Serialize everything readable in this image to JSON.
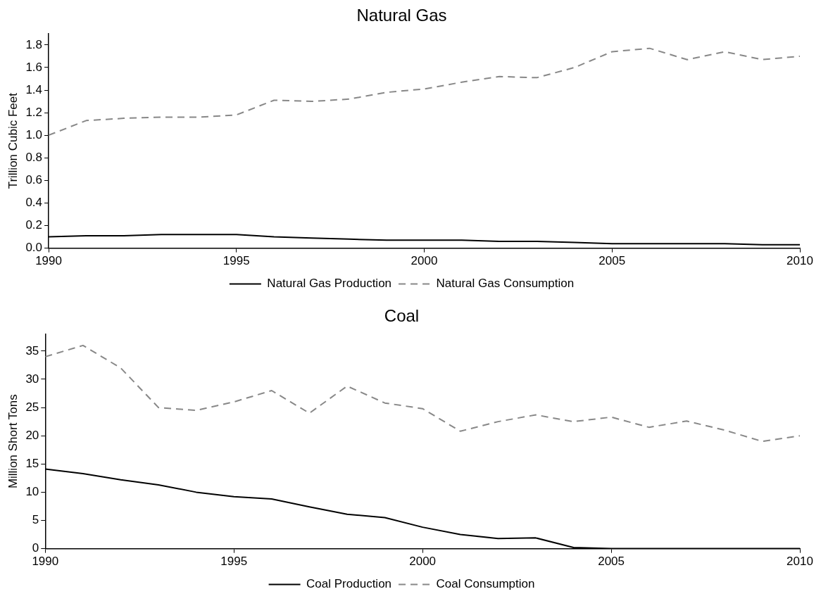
{
  "chart_data": [
    {
      "type": "line",
      "title": "Natural Gas",
      "ylabel": "Trillion Cubic Feet",
      "x": [
        1990,
        1991,
        1992,
        1993,
        1994,
        1995,
        1996,
        1997,
        1998,
        1999,
        2000,
        2001,
        2002,
        2003,
        2004,
        2005,
        2006,
        2007,
        2008,
        2009,
        2010
      ],
      "series": [
        {
          "name": "Natural Gas Production",
          "color": "#000000",
          "line_style": "solid",
          "values": [
            0.1,
            0.11,
            0.11,
            0.12,
            0.12,
            0.12,
            0.1,
            0.09,
            0.08,
            0.07,
            0.07,
            0.07,
            0.06,
            0.06,
            0.05,
            0.04,
            0.04,
            0.04,
            0.04,
            0.03,
            0.03
          ]
        },
        {
          "name": "Natural Gas Consumption",
          "color": "#888888",
          "line_style": "dashed",
          "values": [
            1.0,
            1.13,
            1.15,
            1.16,
            1.16,
            1.18,
            1.31,
            1.3,
            1.32,
            1.38,
            1.41,
            1.47,
            1.52,
            1.51,
            1.6,
            1.74,
            1.77,
            1.67,
            1.74,
            1.67,
            1.7
          ]
        }
      ],
      "xlim": [
        1990,
        2010
      ],
      "xticks": [
        1990,
        1995,
        2000,
        2005,
        2010
      ],
      "ylim": [
        0,
        1.9
      ],
      "yticks": [
        {
          "value": 0,
          "label": "0.0"
        },
        0.2,
        0.4,
        0.6,
        0.8,
        {
          "value": 1,
          "label": "1.0"
        },
        1.2,
        1.4,
        1.6,
        1.8
      ],
      "grid": false,
      "legend": "bottom",
      "marker": "none"
    },
    {
      "type": "line",
      "title": "Coal",
      "ylabel": "Million Short Tons",
      "x": [
        1990,
        1991,
        1992,
        1993,
        1994,
        1995,
        1996,
        1997,
        1998,
        1999,
        2000,
        2001,
        2002,
        2003,
        2004,
        2005,
        2006,
        2007,
        2008,
        2009,
        2010
      ],
      "series": [
        {
          "name": "Coal Production",
          "color": "#000000",
          "line_style": "solid",
          "values": [
            14.1,
            13.3,
            12.2,
            11.3,
            10.0,
            9.2,
            8.8,
            7.4,
            6.1,
            5.5,
            3.8,
            2.5,
            1.8,
            1.9,
            0.2,
            0,
            0,
            0,
            0,
            0,
            0
          ]
        },
        {
          "name": "Coal Consumption",
          "color": "#888888",
          "line_style": "dashed",
          "values": [
            34,
            36,
            32,
            25,
            24.5,
            26,
            28,
            24,
            28.8,
            25.8,
            24.8,
            20.8,
            22.5,
            23.7,
            22.5,
            23.3,
            21.5,
            22.6,
            21,
            19,
            20
          ]
        }
      ],
      "xlim": [
        1990,
        2010
      ],
      "xticks": [
        1990,
        1995,
        2000,
        2005,
        2010
      ],
      "ylim": [
        0,
        38
      ],
      "yticks": [
        0,
        5,
        10,
        15,
        20,
        25,
        30,
        35
      ],
      "grid": false,
      "legend": "bottom",
      "marker": "none"
    }
  ]
}
